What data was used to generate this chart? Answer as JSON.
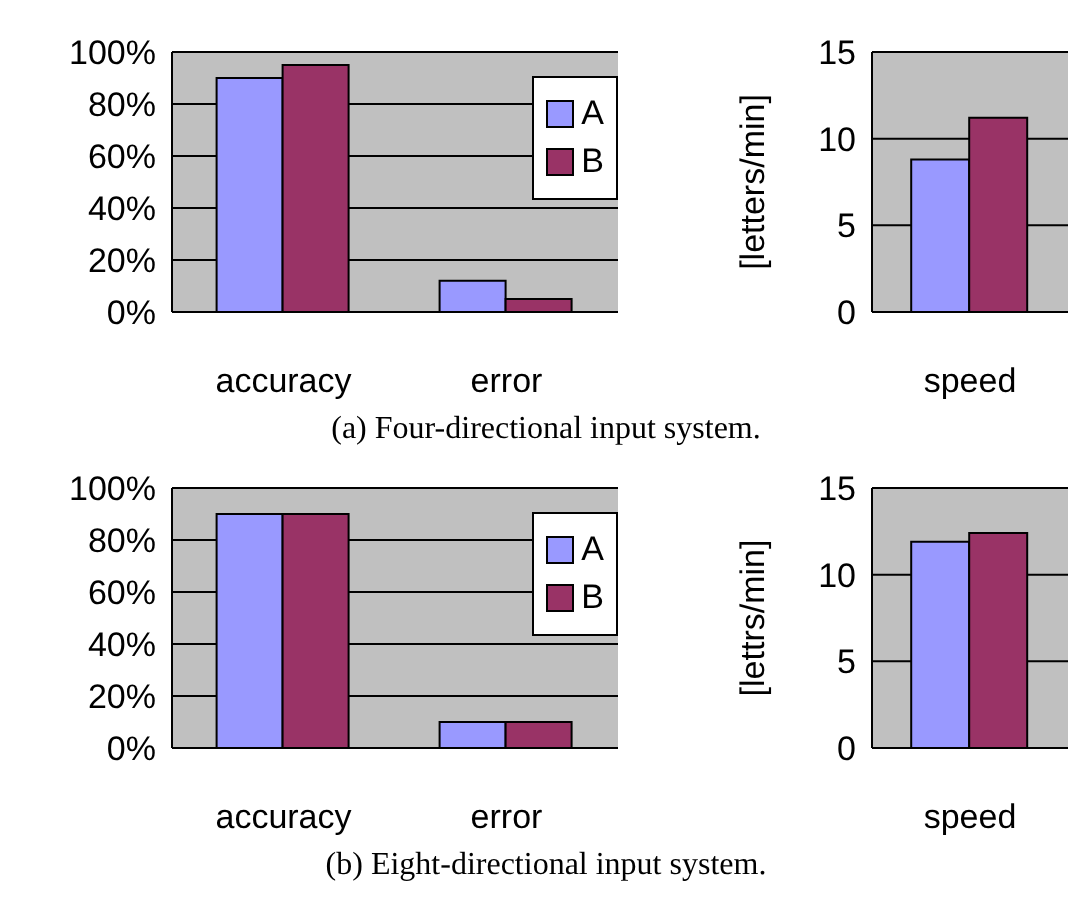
{
  "chart_data": [
    {
      "type": "bar",
      "categories": [
        "accuracy",
        "error"
      ],
      "series": [
        {
          "name": "A",
          "color": "#9999ff",
          "values": [
            90,
            12
          ]
        },
        {
          "name": "B",
          "color": "#993366",
          "values": [
            95,
            5
          ]
        }
      ],
      "ylim": [
        0,
        100
      ],
      "yticks": [
        {
          "value": 0,
          "label": "0%"
        },
        {
          "value": 20,
          "label": "20%"
        },
        {
          "value": 40,
          "label": "40%"
        },
        {
          "value": 60,
          "label": "60%"
        },
        {
          "value": 80,
          "label": "80%"
        },
        {
          "value": 100,
          "label": "100%"
        }
      ],
      "grid": "y",
      "legend": "top right",
      "annotations": [
        "(a) Four-directional input system."
      ]
    },
    {
      "type": "bar",
      "categories": [
        "speed"
      ],
      "series": [
        {
          "color": "#9999ff",
          "values": [
            8.8
          ]
        },
        {
          "color": "#993366",
          "values": [
            11.2
          ]
        }
      ],
      "ylabel": "[letters/min]",
      "ylim": [
        0,
        15
      ],
      "yticks": [
        0,
        5,
        10,
        15
      ],
      "grid": "y"
    },
    {
      "type": "bar",
      "categories": [
        "accuracy",
        "error"
      ],
      "series": [
        {
          "name": "A",
          "color": "#9999ff",
          "values": [
            90,
            10
          ]
        },
        {
          "name": "B",
          "color": "#993366",
          "values": [
            90,
            10
          ]
        }
      ],
      "ylim": [
        0,
        100
      ],
      "yticks": [
        {
          "value": 0,
          "label": "0%"
        },
        {
          "value": 20,
          "label": "20%"
        },
        {
          "value": 40,
          "label": "40%"
        },
        {
          "value": 60,
          "label": "60%"
        },
        {
          "value": 80,
          "label": "80%"
        },
        {
          "value": 100,
          "label": "100%"
        }
      ],
      "grid": "y",
      "legend": "top right",
      "annotations": [
        "(b) Eight-directional input system."
      ]
    },
    {
      "type": "bar",
      "categories": [
        "speed"
      ],
      "series": [
        {
          "color": "#9999ff",
          "values": [
            11.9
          ]
        },
        {
          "color": "#993366",
          "values": [
            12.4
          ]
        }
      ],
      "ylabel": "[lettrs/min]",
      "ylim": [
        0,
        15
      ],
      "yticks": [
        0,
        5,
        10,
        15
      ],
      "grid": "y"
    }
  ]
}
